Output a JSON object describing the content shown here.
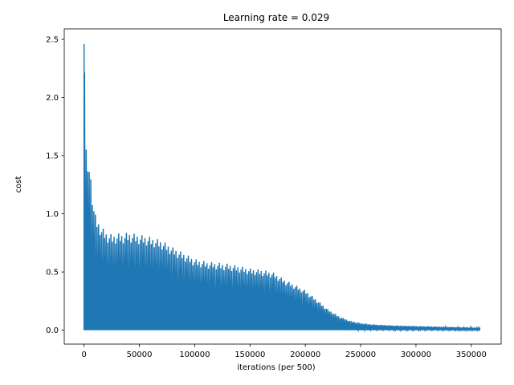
{
  "chart_data": {
    "type": "line",
    "title": "Learning rate = 0.029",
    "xlabel": "iterations (per 500)",
    "ylabel": "cost",
    "xlim": [
      -17900,
      377000
    ],
    "ylim": [
      -0.12,
      2.59
    ],
    "xticks": [
      0,
      50000,
      100000,
      150000,
      200000,
      250000,
      300000,
      350000
    ],
    "yticks": [
      0.0,
      0.5,
      1.0,
      1.5,
      2.0,
      2.5
    ],
    "xtick_labels": [
      "0",
      "50000",
      "100000",
      "150000",
      "200000",
      "250000",
      "300000",
      "350000"
    ],
    "ytick_labels": [
      "0.0",
      "0.5",
      "1.0",
      "1.5",
      "2.0",
      "2.5"
    ],
    "grid": false,
    "color": "#1f77b4",
    "series": [
      {
        "x": [
          0,
          2000,
          4000,
          6000,
          8000,
          10000,
          15000,
          20000,
          25000,
          30000,
          35000,
          40000,
          45000,
          50000,
          60000,
          70000,
          80000,
          90000,
          100000,
          110000,
          120000,
          130000,
          140000,
          150000,
          160000,
          170000,
          180000,
          190000,
          200000,
          210000,
          220000,
          230000,
          240000,
          250000,
          260000,
          280000,
          300000,
          320000,
          340000,
          358000
        ],
        "y_upper": [
          2.46,
          1.28,
          1.49,
          1.29,
          1.1,
          0.98,
          0.89,
          0.84,
          0.82,
          0.83,
          0.83,
          0.84,
          0.83,
          0.82,
          0.8,
          0.77,
          0.71,
          0.66,
          0.61,
          0.59,
          0.58,
          0.57,
          0.55,
          0.53,
          0.52,
          0.5,
          0.44,
          0.39,
          0.34,
          0.26,
          0.18,
          0.12,
          0.08,
          0.06,
          0.05,
          0.04,
          0.035,
          0.03,
          0.025,
          0.02
        ],
        "y_lower": [
          0.0,
          0.0,
          0.0,
          0.0,
          0.0,
          0.0,
          0.0,
          0.0,
          0.0,
          0.0,
          0.0,
          0.0,
          0.0,
          0.0,
          0.0,
          0.0,
          0.0,
          0.0,
          0.0,
          0.0,
          0.0,
          0.0,
          0.0,
          0.0,
          0.0,
          0.0,
          0.0,
          0.0,
          0.0,
          0.0,
          0.0,
          0.0,
          0.0,
          0.0,
          0.0,
          0.0,
          0.0,
          0.0,
          0.0,
          0.0
        ]
      }
    ]
  }
}
